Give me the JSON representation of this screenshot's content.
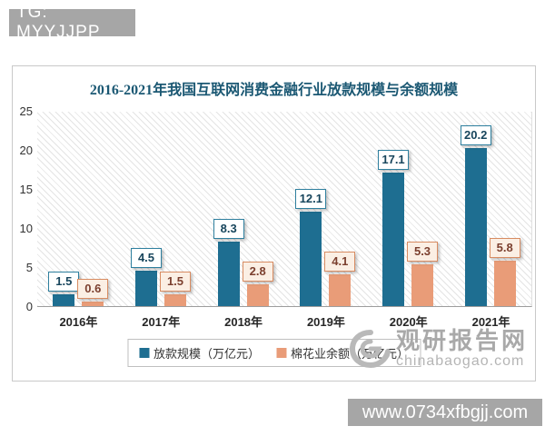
{
  "top_banner": {
    "text": "TG: MYYJJPP"
  },
  "bottom_banner": {
    "text": "www.0734xfbgjj.com"
  },
  "watermark": {
    "name": "观研报告网",
    "domain": "chinabaogao.com"
  },
  "chart_data": {
    "type": "bar",
    "title": "2016-2021年我国互联网消费金融行业放款规模与余额规模",
    "categories": [
      "2016年",
      "2017年",
      "2018年",
      "2019年",
      "2020年",
      "2021年"
    ],
    "series": [
      {
        "name": "放款规模（万亿元）",
        "values": [
          1.5,
          4.5,
          8.3,
          12.1,
          17.1,
          20.2
        ],
        "color": "#1e6e91",
        "label_bg": "#ffffff",
        "label_border": "#2e7f9e",
        "label_color": "#17455c"
      },
      {
        "name": "棉花业余额（万亿元）",
        "values": [
          0.6,
          1.5,
          2.8,
          4.1,
          5.3,
          5.8
        ],
        "color": "#e99c78",
        "label_bg": "#fbefe4",
        "label_border": "#d88c62",
        "label_color": "#7b3f2e"
      }
    ],
    "ylim": [
      0,
      25
    ],
    "yticks": [
      0,
      5,
      10,
      15,
      20,
      25
    ],
    "grid": false,
    "legend_position": "bottom",
    "plot_background": "diagonal-hatch"
  }
}
